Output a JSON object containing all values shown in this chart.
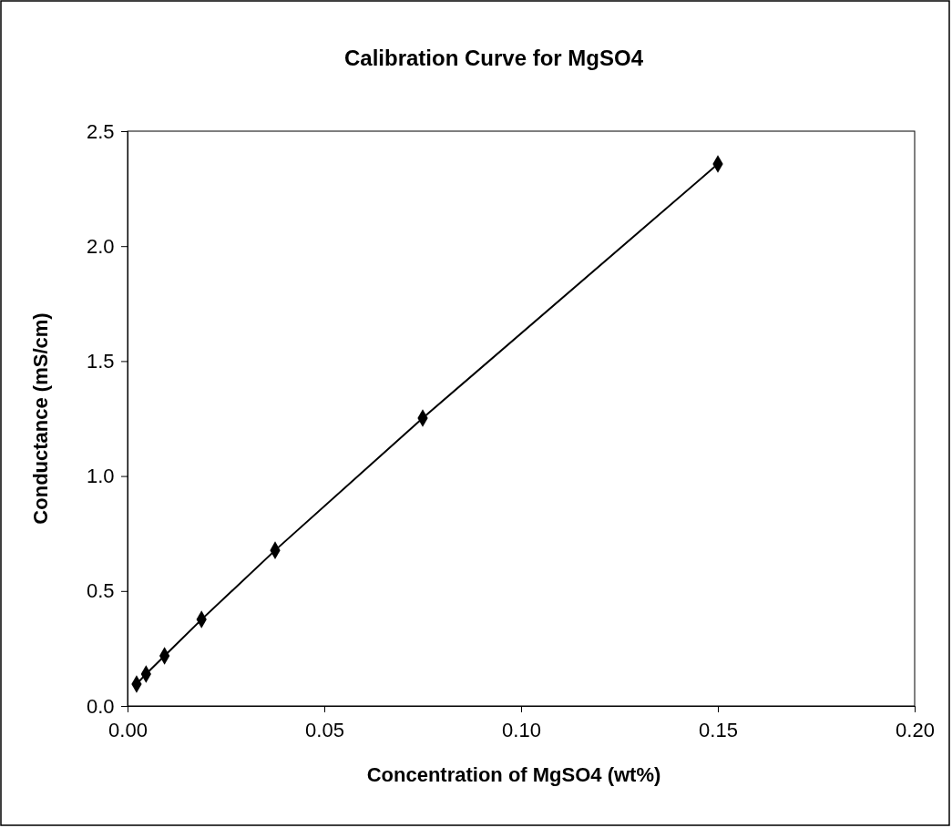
{
  "chart_data": {
    "type": "line",
    "title": "Calibration Curve for MgSO4",
    "xlabel": "Concentration of MgSO4 (wt%)",
    "ylabel": "Conductance (mS/cm)",
    "x": [
      0.0023,
      0.0047,
      0.0094,
      0.0188,
      0.0375,
      0.075,
      0.15
    ],
    "series": [
      {
        "color": "#000000",
        "values": [
          0.095,
          0.139,
          0.218,
          0.376,
          0.677,
          1.252,
          2.357
        ]
      }
    ],
    "xlim": [
      0,
      0.2
    ],
    "ylim": [
      0,
      2.5
    ],
    "xticks": [
      {
        "value": 0,
        "label": "0.00"
      },
      {
        "value": 0.05,
        "label": "0.05"
      },
      {
        "value": 0.1,
        "label": "0.10"
      },
      {
        "value": 0.15,
        "label": "0.15"
      },
      {
        "value": 0.2,
        "label": "0.20"
      }
    ],
    "yticks": [
      {
        "value": 0,
        "label": "0.0"
      },
      {
        "value": 0.5,
        "label": "0.5"
      },
      {
        "value": 1,
        "label": "1.0"
      },
      {
        "value": 1.5,
        "label": "1.5"
      },
      {
        "value": 2,
        "label": "2.0"
      },
      {
        "value": 2.5,
        "label": "2.5"
      }
    ],
    "marker": "diamond",
    "line_style": "solid",
    "grid": false
  }
}
